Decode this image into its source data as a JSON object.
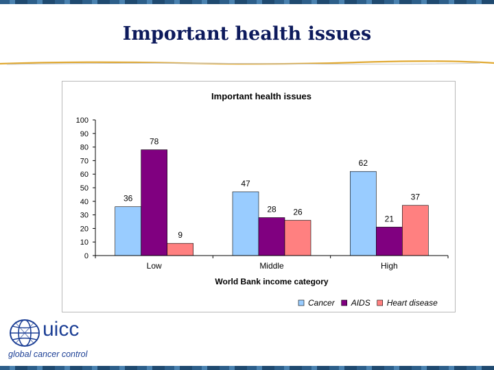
{
  "slide": {
    "title": "Important health issues"
  },
  "logo": {
    "wordmark": "uicc",
    "tagline": "global cancer control",
    "icon": "globe-icon"
  },
  "colors": {
    "title": "#0d1a5c",
    "cancer": "#99ccff",
    "aids": "#800080",
    "heart_disease": "#ff8080",
    "logo": "#1c3f95"
  },
  "chart_data": {
    "type": "bar",
    "title": "Important health issues",
    "xlabel": "World Bank income category",
    "ylabel": "",
    "categories": [
      "Low",
      "Middle",
      "High"
    ],
    "series": [
      {
        "name": "Cancer",
        "values": [
          36,
          47,
          62
        ],
        "color": "#99ccff"
      },
      {
        "name": "AIDS",
        "values": [
          78,
          28,
          21
        ],
        "color": "#800080"
      },
      {
        "name": "Heart disease",
        "values": [
          9,
          26,
          37
        ],
        "color": "#ff8080"
      }
    ],
    "ylim": [
      0,
      100
    ],
    "yticks": [
      "0",
      "10",
      "20",
      "30",
      "40",
      "50",
      "60",
      "70",
      "80",
      "90",
      "100"
    ],
    "grid": false,
    "legend": "bottom-right"
  }
}
